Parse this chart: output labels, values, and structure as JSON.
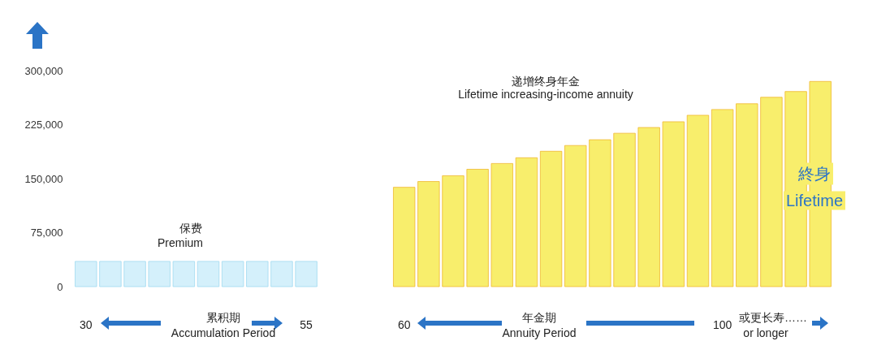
{
  "chart_data": {
    "type": "bar",
    "categories": [
      "30",
      null,
      null,
      null,
      null,
      null,
      null,
      null,
      null,
      "55",
      null,
      null,
      null,
      "60",
      null,
      null,
      null,
      null,
      null,
      null,
      null,
      null,
      null,
      null,
      null,
      null,
      "100",
      null,
      null,
      null,
      null
    ],
    "series": [
      {
        "color": "#d4f0fb",
        "values": [
          35000,
          35000,
          35000,
          35000,
          35000,
          35000,
          35000,
          35000,
          35000,
          35000,
          null,
          null,
          null,
          null,
          null,
          null,
          null,
          null,
          null,
          null,
          null,
          null,
          null,
          null,
          null,
          null,
          null,
          null,
          null,
          null,
          null
        ]
      },
      {
        "color": "#f8ee6c",
        "values": [
          null,
          null,
          null,
          null,
          null,
          null,
          null,
          null,
          null,
          null,
          null,
          null,
          null,
          138000,
          146000,
          154000,
          163000,
          171000,
          179000,
          188000,
          196000,
          204000,
          213000,
          221000,
          229000,
          238000,
          246000,
          254000,
          263000,
          271000,
          285000
        ]
      }
    ],
    "ylim": [
      0,
      300000
    ],
    "yticks": [
      0,
      {
        "value": 75000,
        "label": "75,000"
      },
      {
        "value": 150000,
        "label": "150,000"
      },
      {
        "value": 225000,
        "label": "225,000"
      },
      {
        "value": 300000,
        "label": "300,000"
      }
    ],
    "annotations": [
      "保费",
      "Premium",
      "递增终身年金",
      "Lifetime increasing-income annuity",
      "終身",
      "Lifetime",
      "累积期",
      "Accumulation Period",
      "年金期",
      "Annuity Period",
      "或更长寿……",
      "or longer"
    ]
  }
}
